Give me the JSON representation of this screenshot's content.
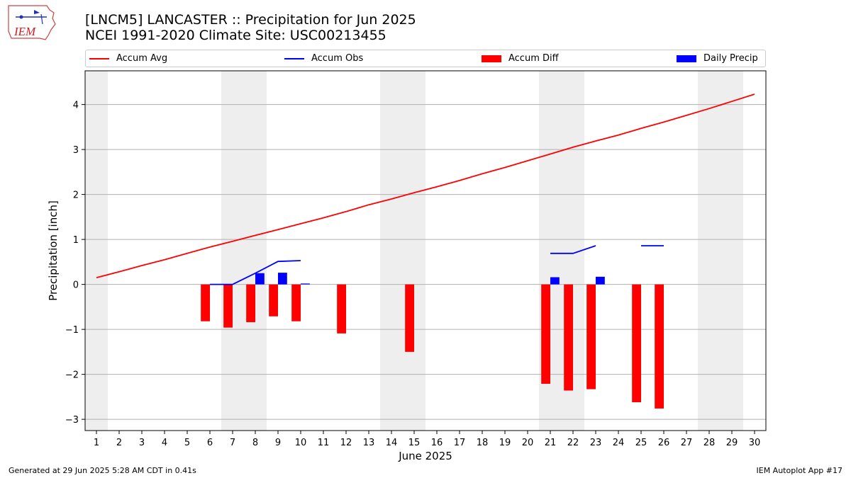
{
  "logo": {
    "text": "IEM"
  },
  "title": {
    "line1": "[LNCM5] LANCASTER :: Precipitation for Jun 2025",
    "line2": "NCEI 1991-2020 Climate Site: USC00213455"
  },
  "legend": [
    {
      "label": "Accum Avg",
      "type": "line",
      "color": "#ff0000"
    },
    {
      "label": "Accum Obs",
      "type": "line",
      "color": "#0000ff"
    },
    {
      "label": "Accum Diff",
      "type": "bar",
      "color": "#ff0000"
    },
    {
      "label": "Daily Precip",
      "type": "bar",
      "color": "#0000ff"
    }
  ],
  "footer": {
    "left": "Generated at 29 Jun 2025 5:28 AM CDT in 0.41s",
    "right": "IEM Autoplot App #17"
  },
  "chart_data": {
    "type": "bar",
    "xlabel": "June 2025",
    "ylabel": "Precipitation [inch]",
    "xlim": [
      0.5,
      30.5
    ],
    "ylim": [
      -3.25,
      4.75
    ],
    "yticks": [
      -3,
      -2,
      -1,
      0,
      1,
      2,
      3,
      4
    ],
    "ytick_labels": [
      "−3",
      "−2",
      "−1",
      "0",
      "1",
      "2",
      "3",
      "4"
    ],
    "days": [
      1,
      2,
      3,
      4,
      5,
      6,
      7,
      8,
      9,
      10,
      11,
      12,
      13,
      14,
      15,
      16,
      17,
      18,
      19,
      20,
      21,
      22,
      23,
      24,
      25,
      26,
      27,
      28,
      29,
      30
    ],
    "weekend_days": [
      1,
      7,
      8,
      14,
      15,
      21,
      22,
      28,
      29
    ],
    "grid": "horizontal",
    "colors": {
      "avg": "#ff0000",
      "obs": "#0000ff",
      "diff": "#ff0000",
      "daily": "#0000ff",
      "weekend": "#eeeeee",
      "grid": "#b0b0b0"
    },
    "accum_avg": [
      0.15,
      0.28,
      0.42,
      0.55,
      0.69,
      0.83,
      0.96,
      1.09,
      1.22,
      1.35,
      1.48,
      1.62,
      1.77,
      1.9,
      2.04,
      2.17,
      2.31,
      2.46,
      2.6,
      2.75,
      2.9,
      3.05,
      3.19,
      3.32,
      3.47,
      3.61,
      3.76,
      3.91,
      4.07,
      4.23
    ],
    "accum_obs": [
      null,
      null,
      null,
      null,
      null,
      0.0,
      0.0,
      0.25,
      0.51,
      0.53,
      null,
      null,
      null,
      null,
      null,
      null,
      null,
      null,
      null,
      null,
      0.69,
      0.69,
      0.86,
      null,
      0.86,
      0.86,
      null,
      null,
      null,
      null
    ],
    "accum_diff": [
      null,
      null,
      null,
      null,
      null,
      -0.82,
      -0.96,
      -0.84,
      -0.71,
      -0.82,
      null,
      -1.09,
      null,
      null,
      -1.5,
      null,
      null,
      null,
      null,
      null,
      -2.21,
      -2.36,
      -2.33,
      null,
      -2.62,
      -2.76,
      null,
      null,
      null,
      null
    ],
    "daily_precip": [
      null,
      null,
      null,
      null,
      null,
      null,
      null,
      0.25,
      0.26,
      0.02,
      null,
      null,
      null,
      null,
      null,
      null,
      null,
      null,
      null,
      null,
      0.16,
      null,
      0.17,
      null,
      null,
      null,
      null,
      null,
      null,
      null
    ]
  }
}
